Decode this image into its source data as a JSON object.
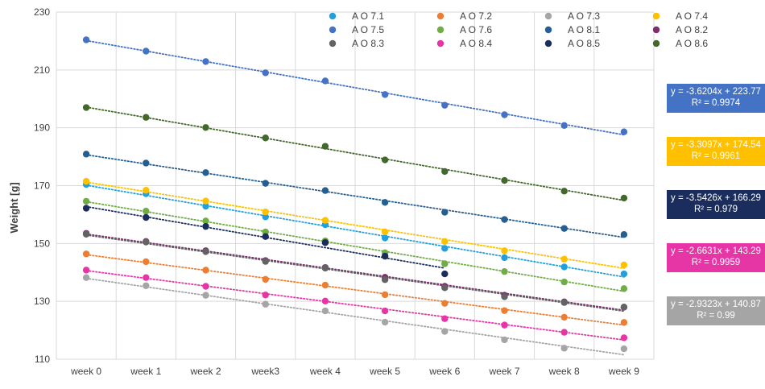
{
  "chart_data": {
    "type": "scatter",
    "ylabel": "Weight [g]",
    "xlabel": "",
    "title": "",
    "categories": [
      "week 0",
      "week 1",
      "week 2",
      "week3",
      "week 4",
      "week 5",
      "week 6",
      "week 7",
      "week 8",
      "week 9"
    ],
    "ylim": [
      110,
      230
    ],
    "yticks": [
      110,
      130,
      150,
      170,
      190,
      210,
      230
    ],
    "grid": true,
    "trendline_style": "dotted linear",
    "legend_position": "top-right",
    "series": [
      {
        "name": "A O 7.1",
        "color": "#21a0db",
        "values": [
          170.4,
          167.2,
          162.9,
          159.2,
          156.5,
          151.9,
          148.3,
          145.1,
          141.9,
          139.5
        ],
        "trend": null
      },
      {
        "name": "A O 7.2",
        "color": "#ed7d31",
        "values": [
          146.4,
          143.7,
          140.8,
          137.6,
          135.6,
          132.3,
          129.3,
          126.8,
          124.5,
          122.7
        ],
        "trend": null
      },
      {
        "name": "A O 7.3",
        "color": "#a5a5a5",
        "values": [
          138.2,
          135.4,
          132.1,
          129.0,
          126.7,
          122.8,
          119.6,
          116.7,
          113.8,
          113.6
        ],
        "trend": {
          "slope": -2.9323,
          "intercept": 140.87
        }
      },
      {
        "name": "A O 7.4",
        "color": "#ffc000",
        "values": [
          171.5,
          168.4,
          164.7,
          160.9,
          158.0,
          154.0,
          150.7,
          147.5,
          144.6,
          142.6
        ],
        "trend": {
          "slope": -3.3097,
          "intercept": 174.54
        }
      },
      {
        "name": "A O 7.5",
        "color": "#4472c4",
        "values": [
          220.4,
          216.5,
          212.9,
          209.0,
          206.2,
          201.5,
          197.8,
          194.5,
          190.8,
          188.6
        ],
        "trend": {
          "slope": -3.6204,
          "intercept": 223.77
        }
      },
      {
        "name": "A O 7.6",
        "color": "#70ad47",
        "values": [
          164.6,
          161.2,
          157.8,
          154.0,
          150.9,
          146.8,
          143.0,
          140.3,
          136.7,
          134.4
        ],
        "trend": null
      },
      {
        "name": "A O 8.1",
        "color": "#255e91",
        "values": [
          180.9,
          177.8,
          174.5,
          170.8,
          168.3,
          164.2,
          160.8,
          158.3,
          155.2,
          153.1
        ],
        "trend": null
      },
      {
        "name": "A O 8.2",
        "color": "#7b2d6e",
        "values": [
          153.5,
          150.7,
          147.5,
          144.1,
          141.7,
          138.3,
          135.2,
          132.1,
          129.8,
          128.0
        ],
        "trend": null
      },
      {
        "name": "A O 8.3",
        "color": "#636363",
        "values": [
          153.2,
          150.5,
          147.2,
          143.8,
          141.5,
          137.5,
          134.7,
          131.6,
          129.6,
          128.0
        ],
        "trend": null
      },
      {
        "name": "A O 8.4",
        "color": "#e636a5",
        "values": [
          140.8,
          138.2,
          135.2,
          132.2,
          130.1,
          126.7,
          124.0,
          121.8,
          119.3,
          117.4
        ],
        "trend": {
          "slope": -2.6631,
          "intercept": 143.29
        }
      },
      {
        "name": "A O 8.5",
        "color": "#1b2d5c",
        "values": [
          162.2,
          159.0,
          155.9,
          152.4,
          150.3,
          145.6,
          139.5,
          null,
          null,
          null
        ],
        "trend": {
          "slope": -3.5426,
          "intercept": 166.29
        }
      },
      {
        "name": "A O 8.6",
        "color": "#43682b",
        "values": [
          197.0,
          193.6,
          190.1,
          186.5,
          183.6,
          178.9,
          174.9,
          171.8,
          168.1,
          165.7
        ],
        "trend": null
      }
    ],
    "annotations": [
      {
        "color": "#4472c4",
        "equation": "y = -3.6204x + 223.77",
        "r2": "R² = 0.9974"
      },
      {
        "color": "#ffc000",
        "equation": "y = -3.3097x + 174.54",
        "r2": "R² = 0.9961"
      },
      {
        "color": "#1b2d5c",
        "equation": "y = -3.5426x + 166.29",
        "r2": "R² = 0.979"
      },
      {
        "color": "#e636a5",
        "equation": "y = -2.6631x + 143.29",
        "r2": "R² = 0.9959"
      },
      {
        "color": "#a5a5a5",
        "equation": "y = -2.9323x + 140.87",
        "r2": "R² = 0.99"
      }
    ]
  }
}
